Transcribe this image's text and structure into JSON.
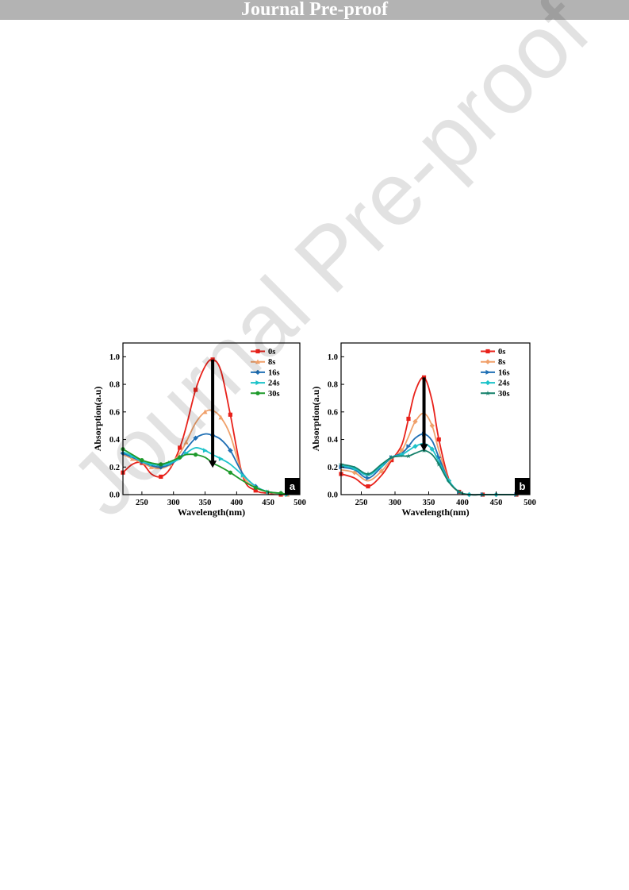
{
  "banner": {
    "text": "Journal Pre-proof"
  },
  "watermark": {
    "text": "Journal Pre-proof"
  },
  "chart_data": [
    {
      "type": "line",
      "panel_label": "a",
      "xlabel": "Wavelength(nm)",
      "ylabel": "Absorption(a.u)",
      "xlim": [
        220,
        500
      ],
      "ylim": [
        0,
        1.1
      ],
      "xticks": [
        250,
        300,
        350,
        400,
        450,
        500
      ],
      "yticks": [
        "0.0",
        "0.2",
        "0.4",
        "0.6",
        "0.8",
        "1.0"
      ],
      "legend_position": "top-right",
      "arrow": {
        "x": 362,
        "from": 0.98,
        "to": 0.2
      },
      "x": [
        220,
        235,
        250,
        265,
        280,
        295,
        310,
        320,
        335,
        350,
        362,
        375,
        390,
        410,
        430,
        450,
        470,
        480
      ],
      "series": [
        {
          "name": "0s",
          "color": "#e8211a",
          "marker": "square",
          "values": [
            0.16,
            0.22,
            0.23,
            0.15,
            0.13,
            0.19,
            0.34,
            0.49,
            0.76,
            0.93,
            0.98,
            0.9,
            0.58,
            0.13,
            0.03,
            0.01,
            0.0,
            0.0
          ]
        },
        {
          "name": "8s",
          "color": "#f0a06a",
          "marker": "triangle",
          "values": [
            0.29,
            0.26,
            0.23,
            0.2,
            0.19,
            0.22,
            0.3,
            0.38,
            0.52,
            0.6,
            0.61,
            0.56,
            0.43,
            0.14,
            0.05,
            0.02,
            0.0,
            0.0
          ]
        },
        {
          "name": "16s",
          "color": "#1f6fb4",
          "marker": "diamond",
          "values": [
            0.3,
            0.27,
            0.24,
            0.21,
            0.2,
            0.22,
            0.27,
            0.33,
            0.41,
            0.44,
            0.43,
            0.4,
            0.32,
            0.15,
            0.06,
            0.02,
            0.01,
            0.0
          ]
        },
        {
          "name": "24s",
          "color": "#1cc2c9",
          "marker": "triangle-right",
          "values": [
            0.31,
            0.28,
            0.24,
            0.22,
            0.21,
            0.23,
            0.26,
            0.3,
            0.34,
            0.32,
            0.29,
            0.26,
            0.22,
            0.14,
            0.06,
            0.02,
            0.01,
            0.0
          ]
        },
        {
          "name": "30s",
          "color": "#1e9a2a",
          "marker": "circle",
          "values": [
            0.33,
            0.29,
            0.25,
            0.23,
            0.22,
            0.24,
            0.27,
            0.29,
            0.29,
            0.27,
            0.23,
            0.2,
            0.16,
            0.1,
            0.05,
            0.02,
            0.01,
            0.0
          ]
        }
      ]
    },
    {
      "type": "line",
      "panel_label": "b",
      "xlabel": "Wavelength(nm)",
      "ylabel": "Absorption(a.u)",
      "xlim": [
        220,
        500
      ],
      "ylim": [
        0,
        1.1
      ],
      "xticks": [
        250,
        300,
        350,
        400,
        450,
        500
      ],
      "yticks": [
        "0.0",
        "0.2",
        "0.4",
        "0.6",
        "0.8",
        "1.0"
      ],
      "legend_position": "top-right",
      "arrow": {
        "x": 343,
        "from": 0.85,
        "to": 0.32
      },
      "x": [
        220,
        240,
        260,
        280,
        295,
        310,
        320,
        330,
        343,
        355,
        365,
        380,
        395,
        410,
        430,
        450,
        480
      ],
      "series": [
        {
          "name": "0s",
          "color": "#e8211a",
          "marker": "square",
          "values": [
            0.15,
            0.12,
            0.06,
            0.14,
            0.25,
            0.36,
            0.55,
            0.75,
            0.85,
            0.68,
            0.4,
            0.11,
            0.02,
            0.0,
            0.0,
            0.0,
            0.0
          ]
        },
        {
          "name": "8s",
          "color": "#f0a06a",
          "marker": "diamond",
          "values": [
            0.18,
            0.16,
            0.1,
            0.17,
            0.26,
            0.32,
            0.42,
            0.53,
            0.59,
            0.5,
            0.32,
            0.1,
            0.02,
            0.0,
            0.0,
            0.0,
            0.0
          ]
        },
        {
          "name": "16s",
          "color": "#1f6fb4",
          "marker": "triangle-right",
          "values": [
            0.2,
            0.18,
            0.12,
            0.2,
            0.27,
            0.3,
            0.35,
            0.41,
            0.44,
            0.39,
            0.27,
            0.1,
            0.02,
            0.0,
            0.0,
            0.0,
            0.0
          ]
        },
        {
          "name": "24s",
          "color": "#1cc2c9",
          "marker": "diamond",
          "values": [
            0.21,
            0.19,
            0.14,
            0.21,
            0.27,
            0.29,
            0.32,
            0.35,
            0.37,
            0.33,
            0.24,
            0.1,
            0.02,
            0.0,
            0.0,
            0.0,
            0.0
          ]
        },
        {
          "name": "30s",
          "color": "#14806a",
          "marker": "star",
          "values": [
            0.22,
            0.2,
            0.15,
            0.22,
            0.27,
            0.28,
            0.28,
            0.3,
            0.32,
            0.29,
            0.22,
            0.09,
            0.02,
            0.0,
            0.0,
            0.0,
            0.0
          ]
        }
      ]
    }
  ]
}
